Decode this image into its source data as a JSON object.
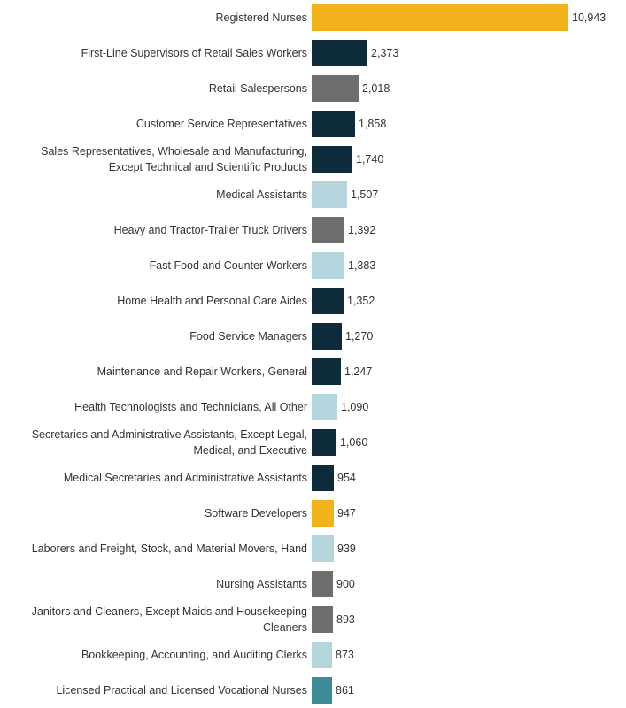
{
  "chart_data": {
    "type": "bar",
    "orientation": "horizontal",
    "title": "",
    "xlabel": "",
    "ylabel": "",
    "xlim": [
      0,
      10943
    ],
    "categories": [
      "Registered Nurses",
      "First-Line Supervisors of Retail Sales Workers",
      "Retail Salespersons",
      "Customer Service Representatives",
      "Sales Representatives, Wholesale and Manufacturing,\nExcept Technical and Scientific Products",
      "Medical Assistants",
      "Heavy and Tractor-Trailer Truck Drivers",
      "Fast Food and Counter Workers",
      "Home Health and Personal Care Aides",
      "Food Service Managers",
      "Maintenance and Repair Workers, General",
      "Health Technologists and Technicians, All Other",
      "Secretaries and Administrative Assistants, Except Legal,\nMedical, and Executive",
      "Medical Secretaries and Administrative Assistants",
      "Software Developers",
      "Laborers and Freight, Stock, and Material Movers, Hand",
      "Nursing Assistants",
      "Janitors and Cleaners, Except Maids and Housekeeping\nCleaners",
      "Bookkeeping, Accounting, and Auditing Clerks",
      "Licensed Practical and Licensed Vocational Nurses"
    ],
    "values": [
      10943,
      2373,
      2018,
      1858,
      1740,
      1507,
      1392,
      1383,
      1352,
      1270,
      1247,
      1090,
      1060,
      954,
      947,
      939,
      900,
      893,
      873,
      861
    ],
    "value_labels": [
      "10,943",
      "2,373",
      "2,018",
      "1,858",
      "1,740",
      "1,507",
      "1,392",
      "1,383",
      "1,352",
      "1,270",
      "1,247",
      "1,090",
      "1,060",
      "954",
      "947",
      "939",
      "900",
      "893",
      "873",
      "861"
    ],
    "bar_colors": [
      "#f2b21c",
      "#0d2b3a",
      "#6e6e6e",
      "#0d2b3a",
      "#0d2b3a",
      "#b4d5dc",
      "#6e6e6e",
      "#b4d5dc",
      "#0d2b3a",
      "#0d2b3a",
      "#0d2b3a",
      "#b4d5dc",
      "#0d2b3a",
      "#0d2b3a",
      "#f2b21c",
      "#b4d5dc",
      "#6e6e6e",
      "#6e6e6e",
      "#b4d5dc",
      "#3c8c98"
    ]
  }
}
